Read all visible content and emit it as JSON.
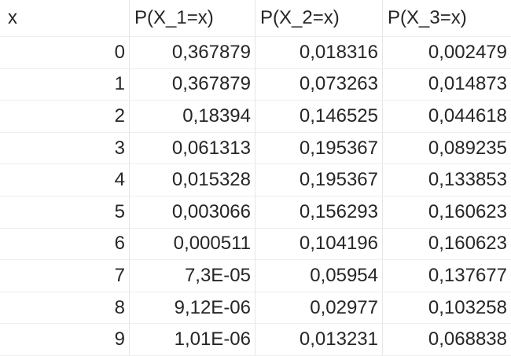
{
  "table": {
    "headers": [
      "x",
      "P(X_1=x)",
      "P(X_2=x)",
      "P(X_3=x)"
    ],
    "rows": [
      [
        "0",
        "0,367879",
        "0,018316",
        "0,002479"
      ],
      [
        "1",
        "0,367879",
        "0,073263",
        "0,014873"
      ],
      [
        "2",
        "0,18394",
        "0,146525",
        "0,044618"
      ],
      [
        "3",
        "0,061313",
        "0,195367",
        "0,089235"
      ],
      [
        "4",
        "0,015328",
        "0,195367",
        "0,133853"
      ],
      [
        "5",
        "0,003066",
        "0,156293",
        "0,160623"
      ],
      [
        "6",
        "0,000511",
        "0,104196",
        "0,160623"
      ],
      [
        "7",
        "7,3E-05",
        "0,05954",
        "0,137677"
      ],
      [
        "8",
        "9,12E-06",
        "0,02977",
        "0,103258"
      ],
      [
        "9",
        "1,01E-06",
        "0,013231",
        "0,068838"
      ]
    ]
  }
}
